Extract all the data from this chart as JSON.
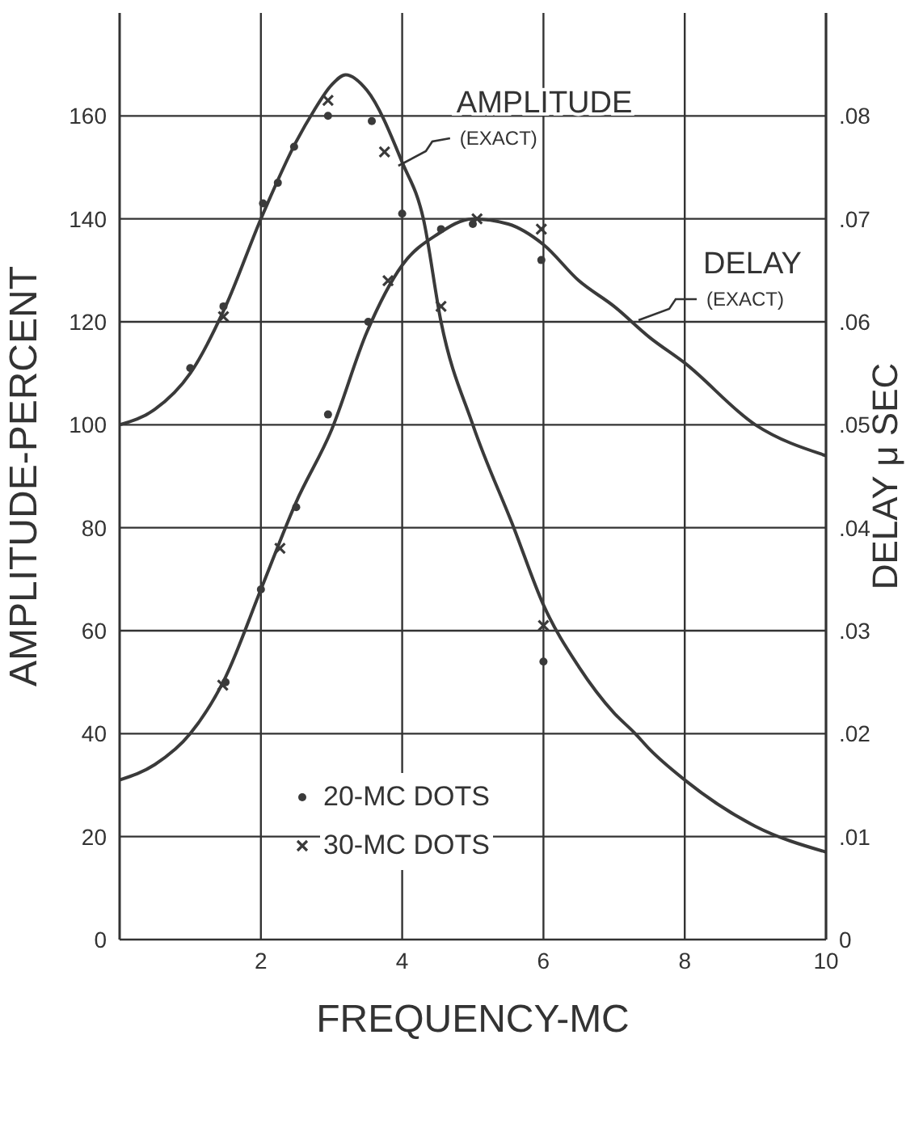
{
  "chart_data": {
    "type": "line",
    "xlabel": "FREQUENCY-MC",
    "ylabel": "AMPLITUDE-PERCENT",
    "y2label": "DELAY μ SEC",
    "xlim": [
      0,
      10
    ],
    "xticks": [
      2,
      4,
      6,
      8,
      10
    ],
    "ylim": [
      0,
      180
    ],
    "yticks": [
      0,
      20,
      40,
      60,
      80,
      100,
      120,
      140,
      160
    ],
    "y2lim": [
      0,
      0.09
    ],
    "y2ticks": [
      {
        "value": 0,
        "label": "0"
      },
      {
        "value": 0.01,
        "label": ".01"
      },
      {
        "value": 0.02,
        "label": ".02"
      },
      {
        "value": 0.03,
        "label": ".03"
      },
      {
        "value": 0.04,
        "label": ".04"
      },
      {
        "value": 0.05,
        "label": ".05"
      },
      {
        "value": 0.06,
        "label": ".06"
      },
      {
        "value": 0.07,
        "label": ".07"
      },
      {
        "value": 0.08,
        "label": ".08"
      }
    ],
    "grid": true,
    "legend": "bottom",
    "line_style": "solid",
    "annotations": [
      {
        "text": "AMPLITUDE (EXACT)",
        "x": 3.9,
        "y": 150
      },
      {
        "text": "DELAY (EXACT)",
        "x": 7.3,
        "y": 120
      }
    ],
    "series": [
      {
        "color": "#3a3a3a",
        "marker": "none",
        "x": [
          0,
          0.5,
          1,
          1.5,
          2,
          2.5,
          2.75,
          3,
          3.2,
          3.5,
          4,
          4.3,
          4.55,
          5,
          5.58,
          6,
          6.5,
          7,
          7.3,
          7.5,
          8,
          9,
          10
        ],
        "values": [
          100,
          103,
          110,
          123,
          140,
          155,
          161,
          166,
          168,
          165,
          151,
          140,
          120,
          100,
          80,
          65,
          53,
          44,
          40,
          37,
          31,
          22,
          17
        ]
      },
      {
        "axis": "y2",
        "color": "#3a3a3a",
        "marker": "none",
        "x": [
          0,
          0.5,
          1,
          1.5,
          2,
          2.5,
          3,
          3.5,
          4,
          4.5,
          5,
          5.5,
          6,
          6.5,
          7,
          7.5,
          8,
          9,
          10
        ],
        "values": [
          0.0155,
          0.017,
          0.02,
          0.0255,
          0.034,
          0.0425,
          0.0495,
          0.059,
          0.0655,
          0.0685,
          0.07,
          0.0695,
          0.0675,
          0.064,
          0.0615,
          0.0585,
          0.056,
          0.05,
          0.047
        ]
      },
      {
        "type": "scatter",
        "name": "20-MC DOTS",
        "color": "#3a3a3a",
        "marker": "circle",
        "x": [
          1.0,
          1.47,
          2.03,
          2.24,
          2.47,
          2.95,
          3.57,
          4.0,
          6.0
        ],
        "values": [
          111,
          123,
          143,
          147,
          154,
          160,
          159,
          141,
          54
        ]
      },
      {
        "type": "scatter",
        "name": "30-MC DOTS",
        "color": "#3a3a3a",
        "marker": "cross",
        "x": [
          1.47,
          2.95,
          3.75,
          4.55,
          6.0
        ],
        "values": [
          121,
          163,
          153,
          123,
          61
        ]
      },
      {
        "type": "scatter",
        "axis": "y2",
        "color": "#3a3a3a",
        "marker": "circle",
        "x": [
          1.5,
          2.0,
          2.5,
          2.95,
          3.52,
          4.55,
          5.0,
          5.97
        ],
        "values": [
          0.025,
          0.034,
          0.042,
          0.051,
          0.06,
          0.069,
          0.0695,
          0.066
        ]
      },
      {
        "type": "scatter",
        "axis": "y2",
        "color": "#3a3a3a",
        "marker": "cross",
        "x": [
          1.46,
          2.27,
          3.8,
          5.06,
          5.97
        ],
        "values": [
          0.0247,
          0.038,
          0.064,
          0.07,
          0.069
        ]
      }
    ]
  }
}
